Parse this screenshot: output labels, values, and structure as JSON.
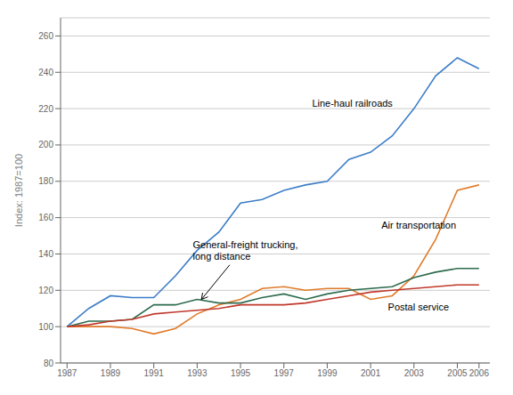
{
  "chart_data": {
    "type": "line",
    "x": [
      1987,
      1988,
      1989,
      1990,
      1991,
      1992,
      1993,
      1994,
      1995,
      1996,
      1997,
      1998,
      1999,
      2000,
      2001,
      2002,
      2003,
      2004,
      2005,
      2006
    ],
    "series": [
      {
        "name": "Line-haul railroads",
        "color": "#3d7ec8",
        "values": [
          100,
          110,
          117,
          116,
          116,
          128,
          142,
          152,
          168,
          170,
          175,
          178,
          180,
          192,
          196,
          205,
          220,
          238,
          248,
          242
        ]
      },
      {
        "name": "Air transportation",
        "color": "#e07b2a",
        "values": [
          100,
          100,
          100,
          99,
          96,
          99,
          107,
          112,
          115,
          121,
          122,
          120,
          121,
          121,
          115,
          117,
          128,
          148,
          175,
          178
        ]
      },
      {
        "name": "General-freight trucking,\nlong distance",
        "color": "#2d6b4e",
        "values": [
          100,
          103,
          103,
          104,
          112,
          112,
          115,
          113,
          113,
          116,
          118,
          115,
          118,
          120,
          121,
          122,
          127,
          130,
          132,
          132
        ]
      },
      {
        "name": "Postal service",
        "color": "#c0392b",
        "values": [
          100,
          101,
          103,
          104,
          107,
          108,
          109,
          110,
          112,
          112,
          112,
          113,
          115,
          117,
          119,
          120,
          121,
          122,
          123,
          123
        ]
      }
    ],
    "y_label": "Index: 1987=100",
    "xlim": [
      1986.7,
      2006.5
    ],
    "xticks": [
      1987,
      1989,
      1991,
      1993,
      1995,
      1997,
      1999,
      2001,
      2003,
      2005,
      2006
    ],
    "ylim": [
      80,
      270
    ],
    "yticks": [
      80,
      100,
      120,
      140,
      160,
      180,
      200,
      220,
      240,
      260
    ],
    "grid": true,
    "annotations": [
      {
        "text": "Line-haul railroads",
        "x": 1998.3,
        "y": 221
      },
      {
        "text": "Air transportation",
        "x": 2001.5,
        "y": 154
      },
      {
        "text": "General-freight trucking,\nlong distance",
        "x": 1992.8,
        "y": 137,
        "arrow_from": [
          1994.5,
          134
        ],
        "arrow_to": [
          1993.2,
          115
        ]
      },
      {
        "text": "Postal service",
        "x": 2001.8,
        "y": 109
      }
    ]
  }
}
